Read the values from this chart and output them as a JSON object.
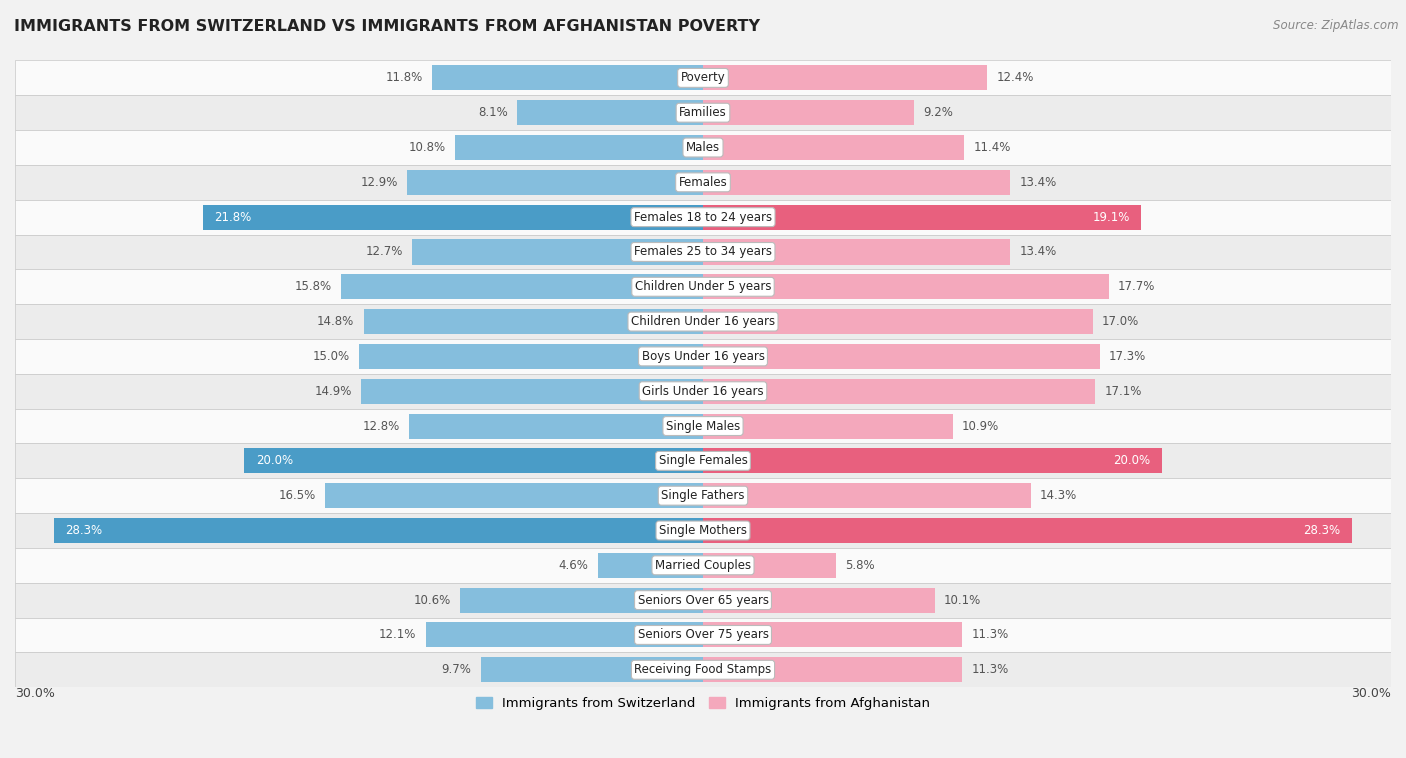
{
  "title": "IMMIGRANTS FROM SWITZERLAND VS IMMIGRANTS FROM AFGHANISTAN POVERTY",
  "source": "Source: ZipAtlas.com",
  "categories": [
    "Poverty",
    "Families",
    "Males",
    "Females",
    "Females 18 to 24 years",
    "Females 25 to 34 years",
    "Children Under 5 years",
    "Children Under 16 years",
    "Boys Under 16 years",
    "Girls Under 16 years",
    "Single Males",
    "Single Females",
    "Single Fathers",
    "Single Mothers",
    "Married Couples",
    "Seniors Over 65 years",
    "Seniors Over 75 years",
    "Receiving Food Stamps"
  ],
  "switzerland_values": [
    11.8,
    8.1,
    10.8,
    12.9,
    21.8,
    12.7,
    15.8,
    14.8,
    15.0,
    14.9,
    12.8,
    20.0,
    16.5,
    28.3,
    4.6,
    10.6,
    12.1,
    9.7
  ],
  "afghanistan_values": [
    12.4,
    9.2,
    11.4,
    13.4,
    19.1,
    13.4,
    17.7,
    17.0,
    17.3,
    17.1,
    10.9,
    20.0,
    14.3,
    28.3,
    5.8,
    10.1,
    11.3,
    11.3
  ],
  "switzerland_color": "#85BEDD",
  "afghanistan_color": "#F4A8BC",
  "switzerland_highlight_color": "#4A9CC7",
  "afghanistan_highlight_color": "#E8607E",
  "label_color_normal": "#555555",
  "label_color_highlight": "#FFFFFF",
  "highlight_threshold": 18.0,
  "x_max": 30.0,
  "bar_height": 0.72,
  "background_color": "#F2F2F2",
  "row_bg_light": "#FAFAFA",
  "row_bg_dark": "#ECECEC",
  "legend_switzerland": "Immigrants from Switzerland",
  "legend_afghanistan": "Immigrants from Afghanistan"
}
